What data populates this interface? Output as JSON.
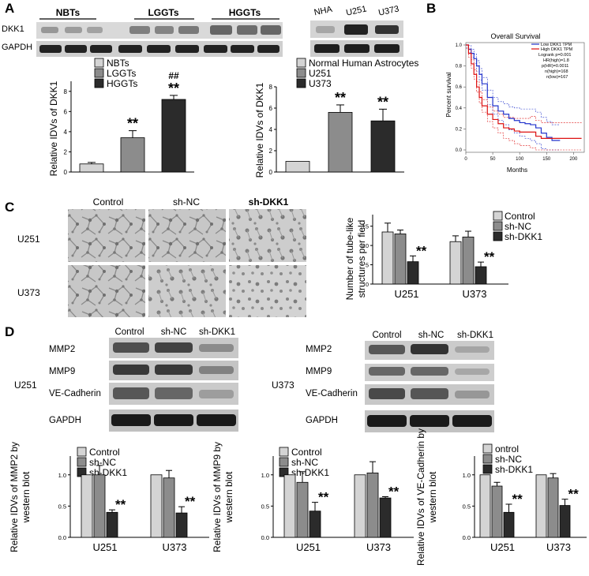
{
  "panels": {
    "a": "A",
    "b": "B",
    "c": "C",
    "d": "D"
  },
  "colors": {
    "light": "#d4d4d4",
    "mid": "#8c8c8c",
    "dark": "#2b2b2b",
    "km_low": "#2233cc",
    "km_high": "#dd1111"
  },
  "panelA": {
    "blot1": {
      "groups": [
        "NBTs",
        "LGGTs",
        "HGGTs"
      ],
      "rows": [
        "DKK1",
        "GAPDH"
      ]
    },
    "blot2": {
      "lanes": [
        "NHA",
        "U251",
        "U373"
      ]
    },
    "chart1": {
      "ylabel": "Relative IDVs of DKK1",
      "legend": [
        "NBTs",
        "LGGTs",
        "HGGTs"
      ],
      "sig": [
        "",
        "**",
        "**"
      ],
      "sig2": [
        "",
        "",
        "##"
      ]
    },
    "chart2": {
      "ylabel": "Relative IDVs of DKK1",
      "legend": [
        "Normal Human Astrocytes",
        "U251",
        "U373"
      ],
      "sig": [
        "",
        "**",
        "**"
      ]
    }
  },
  "panelB": {
    "title": "Overall Survival",
    "ylabel": "Percent survival",
    "xlabel": "Months",
    "legend": [
      "Low DKK1 TPM",
      "High DKK1 TPM"
    ],
    "stats": [
      "Logrank p=0.001",
      "HR(high)=1.8",
      "p(HR)=0.0011",
      "n(high)=168",
      "n(low)=167"
    ]
  },
  "panelC": {
    "cols": [
      "Control",
      "sh-NC",
      "sh-DKK1"
    ],
    "rows": [
      "U251",
      "U373"
    ],
    "chart": {
      "ylabel": "Number of tube-like structures per field",
      "legend": [
        "Control",
        "sh-NC",
        "sh-DKK1"
      ],
      "sig": "**"
    }
  },
  "panelD": {
    "blot1": {
      "cell": "U251",
      "lanes": [
        "Control",
        "sh-NC",
        "sh-DKK1"
      ],
      "rows": [
        "MMP2",
        "MMP9",
        "VE-Cadherin",
        "GAPDH"
      ]
    },
    "blot2": {
      "cell": "U373",
      "lanes": [
        "Control",
        "sh-NC",
        "sh-DKK1"
      ],
      "rows": [
        "MMP2",
        "MMP9",
        "VE-Cadherin",
        "GAPDH"
      ]
    },
    "charts": [
      {
        "ylabel": "Relative IDVs of MMP2 by western blot",
        "legend": [
          "Control",
          "sh-NC",
          "sh-DKK1"
        ]
      },
      {
        "ylabel": "Relative IDVs of MMP9 by western blot",
        "legend": [
          "Control",
          "sh-NC",
          "sh-DKK1"
        ]
      },
      {
        "ylabel": "Relative IDVs of VE-Cadherin by western blot",
        "legend": [
          "ontrol",
          "sh-NC",
          "sh-DKK1"
        ]
      }
    ],
    "sig": "**"
  },
  "chart_data": [
    {
      "type": "bar",
      "id": "A-tissue",
      "categories": [
        "NBTs",
        "LGGTs",
        "HGGTs"
      ],
      "values": [
        0.8,
        3.4,
        7.2
      ],
      "errors": [
        0.15,
        0.7,
        0.4
      ],
      "ylim": [
        0,
        9
      ]
    },
    {
      "type": "bar",
      "id": "A-cells",
      "categories": [
        "Normal Human Astrocytes",
        "U251",
        "U373"
      ],
      "values": [
        1.0,
        5.6,
        4.8
      ],
      "errors": [
        0,
        0.7,
        1.1
      ],
      "ylim": [
        0,
        8
      ]
    },
    {
      "type": "line",
      "id": "B-km",
      "title": "Overall Survival",
      "xlabel": "Months",
      "ylabel": "Percent survival",
      "xlim": [
        0,
        220
      ],
      "ylim": [
        0,
        1.0
      ],
      "xticks": [
        0,
        50,
        100,
        150,
        200
      ],
      "yticks": [
        0.0,
        0.2,
        0.4,
        0.6,
        0.8,
        1.0
      ],
      "series": [
        {
          "name": "Low DKK1 TPM",
          "x": [
            0,
            5,
            10,
            15,
            20,
            25,
            30,
            40,
            50,
            60,
            70,
            80,
            90,
            100,
            110,
            120,
            130,
            140,
            150,
            160,
            175
          ],
          "y": [
            1.0,
            0.96,
            0.92,
            0.87,
            0.8,
            0.72,
            0.63,
            0.5,
            0.42,
            0.37,
            0.34,
            0.3,
            0.28,
            0.26,
            0.25,
            0.24,
            0.21,
            0.16,
            0.12,
            0.09,
            0.09
          ]
        },
        {
          "name": "High DKK1 TPM",
          "x": [
            0,
            5,
            10,
            15,
            20,
            25,
            30,
            40,
            50,
            60,
            70,
            80,
            90,
            100,
            120,
            130,
            140,
            215
          ],
          "y": [
            1.0,
            0.92,
            0.82,
            0.72,
            0.6,
            0.5,
            0.42,
            0.34,
            0.29,
            0.25,
            0.21,
            0.2,
            0.18,
            0.17,
            0.17,
            0.13,
            0.11,
            0.11
          ]
        }
      ]
    },
    {
      "type": "bar",
      "id": "C-tubes",
      "categories": [
        "U251",
        "U373"
      ],
      "series": [
        {
          "name": "Control",
          "values": [
            13.5,
            11.0
          ],
          "errors": [
            2.3,
            1.5
          ]
        },
        {
          "name": "sh-NC",
          "values": [
            13.0,
            12.2
          ],
          "errors": [
            1.0,
            1.5
          ]
        },
        {
          "name": "sh-DKK1",
          "values": [
            5.8,
            4.5
          ],
          "errors": [
            1.5,
            1.2
          ]
        }
      ],
      "ylim": [
        0,
        18
      ]
    },
    {
      "type": "bar",
      "id": "D-MMP2",
      "categories": [
        "U251",
        "U373"
      ],
      "series": [
        {
          "name": "Control",
          "values": [
            1.0,
            1.0
          ],
          "errors": [
            0,
            0
          ]
        },
        {
          "name": "sh-NC",
          "values": [
            1.0,
            0.95
          ],
          "errors": [
            0.15,
            0.12
          ]
        },
        {
          "name": "sh-DKK1",
          "values": [
            0.4,
            0.39
          ],
          "errors": [
            0.04,
            0.1
          ]
        }
      ],
      "ylim": [
        0,
        1.3
      ],
      "yticks": [
        0.0,
        0.5,
        1.0
      ]
    },
    {
      "type": "bar",
      "id": "D-MMP9",
      "categories": [
        "U251",
        "U373"
      ],
      "series": [
        {
          "name": "Control",
          "values": [
            1.0,
            1.0
          ],
          "errors": [
            0,
            0
          ]
        },
        {
          "name": "sh-NC",
          "values": [
            0.88,
            1.03
          ],
          "errors": [
            0.17,
            0.18
          ]
        },
        {
          "name": "sh-DKK1",
          "values": [
            0.42,
            0.63
          ],
          "errors": [
            0.14,
            0.02
          ]
        }
      ],
      "ylim": [
        0,
        1.3
      ],
      "yticks": [
        0.0,
        0.5,
        1.0
      ]
    },
    {
      "type": "bar",
      "id": "D-VE",
      "categories": [
        "U251",
        "U373"
      ],
      "series": [
        {
          "name": "Control",
          "values": [
            1.0,
            1.0
          ],
          "errors": [
            0,
            0
          ]
        },
        {
          "name": "sh-NC",
          "values": [
            0.82,
            0.95
          ],
          "errors": [
            0.06,
            0.07
          ]
        },
        {
          "name": "sh-DKK1",
          "values": [
            0.4,
            0.51
          ],
          "errors": [
            0.13,
            0.1
          ]
        }
      ],
      "ylim": [
        0,
        1.3
      ],
      "yticks": [
        0.0,
        0.5,
        1.0
      ]
    }
  ]
}
